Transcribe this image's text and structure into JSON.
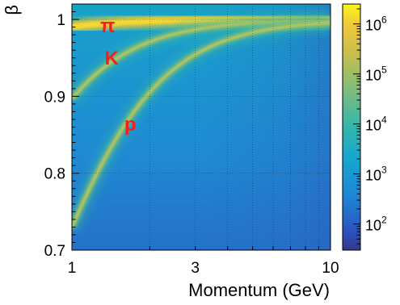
{
  "chart_data": {
    "type": "heatmap",
    "title": "",
    "xlabel": "Momentum (GeV)",
    "ylabel": "β",
    "xscale": "log",
    "xlim": [
      1,
      10
    ],
    "ylim": [
      0.7,
      1.02
    ],
    "x_ticks": [
      "1",
      "3",
      "10"
    ],
    "y_ticks": [
      "0.7",
      "0.8",
      "0.9",
      "1"
    ],
    "grid": true,
    "colorbar": {
      "scale": "log",
      "range": [
        30,
        2500000
      ],
      "ticks": [
        {
          "label": "10",
          "exp": "2"
        },
        {
          "label": "10",
          "exp": "3"
        },
        {
          "label": "10",
          "exp": "4"
        },
        {
          "label": "10",
          "exp": "5"
        },
        {
          "label": "10",
          "exp": "6"
        }
      ]
    },
    "bands": [
      {
        "label": "π",
        "mass_gev": 0.1396
      },
      {
        "label": "K",
        "mass_gev": 0.4937
      },
      {
        "label": "p",
        "mass_gev": 0.9383
      }
    ],
    "colors": {
      "background": "#1f8fd0",
      "band_label": "#ff1a1a",
      "band_high": "#f3d830"
    }
  }
}
